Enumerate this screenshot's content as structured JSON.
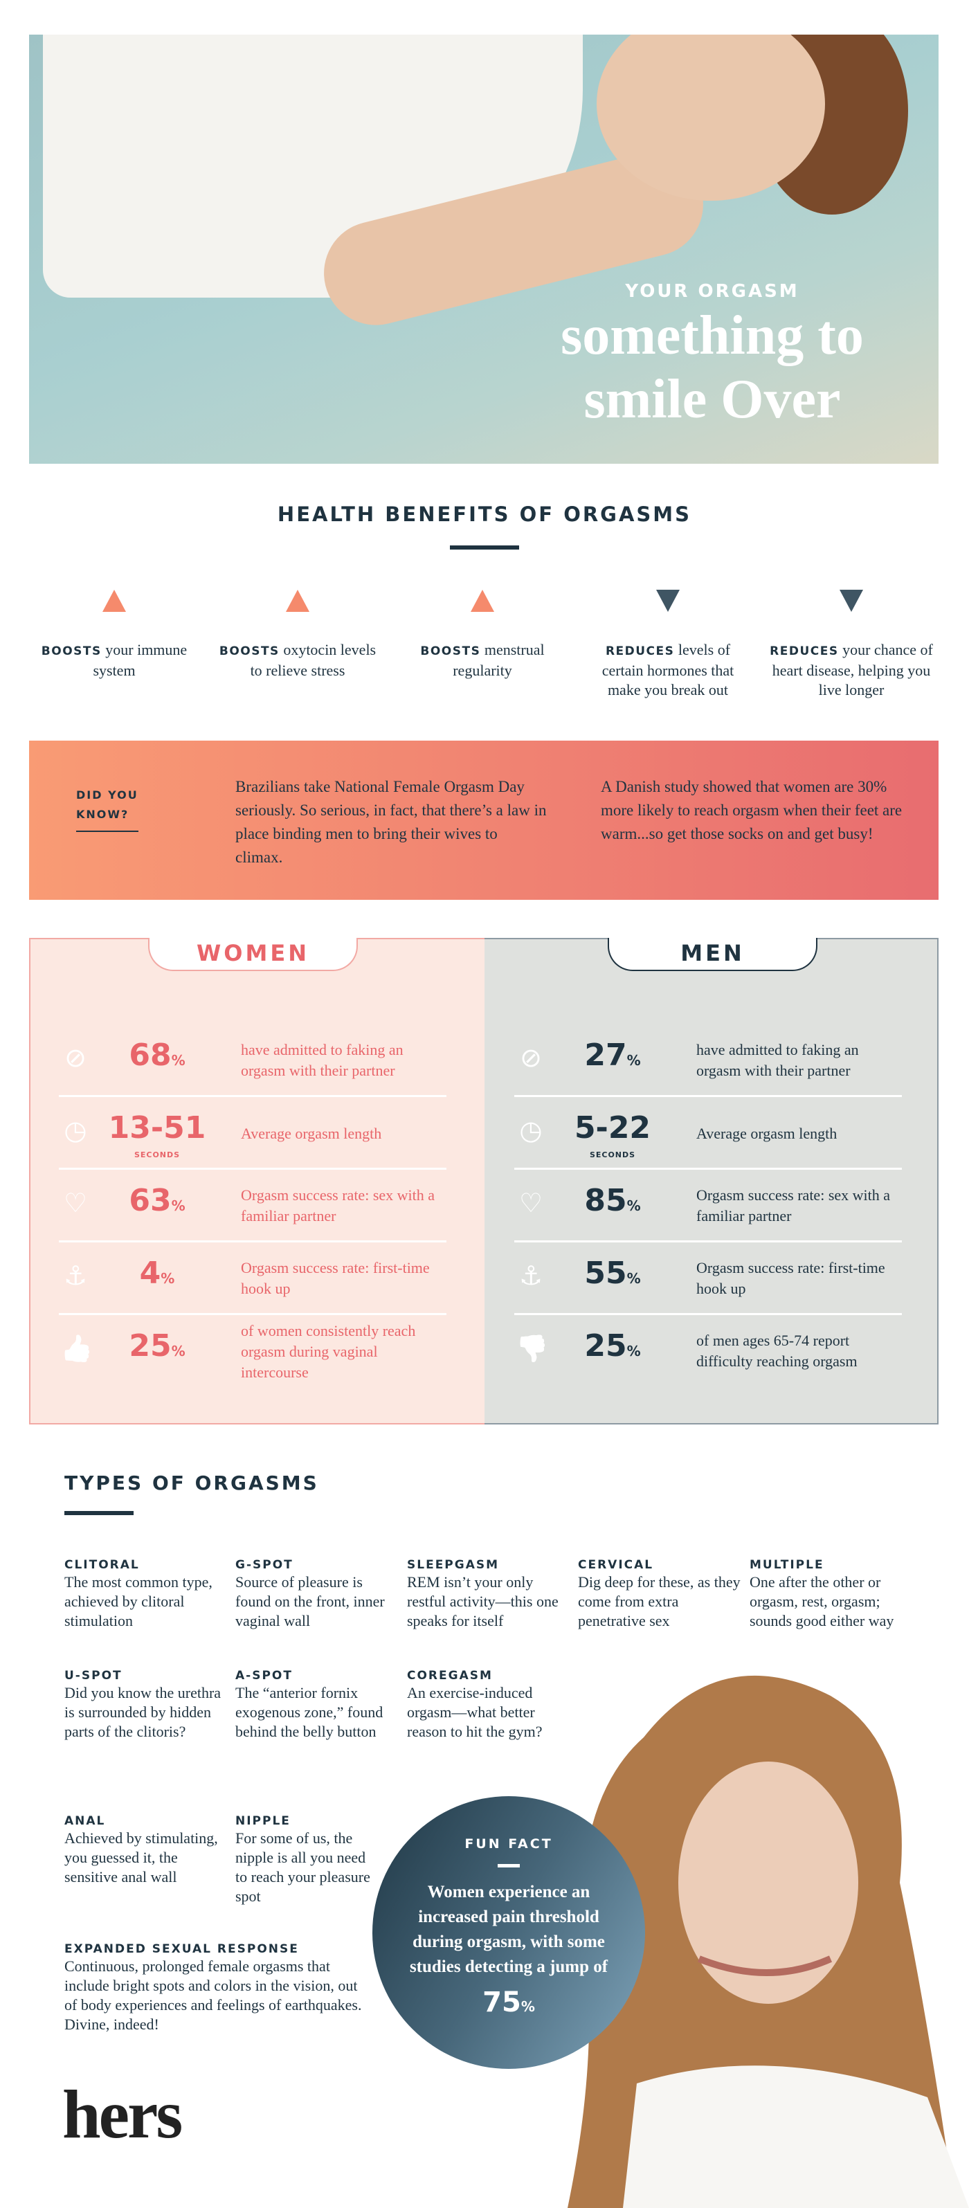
{
  "hero": {
    "kicker": "YOUR ORGASM",
    "title_line1": "something to",
    "title_line2": "smile Over"
  },
  "benefits": {
    "title": "HEALTH BENEFITS OF ORGASMS",
    "items": [
      {
        "direction": "up",
        "bold": "BOOSTS",
        "text": " your immune system"
      },
      {
        "direction": "up",
        "bold": "BOOSTS",
        "text": " oxytocin levels to relieve stress"
      },
      {
        "direction": "up",
        "bold": "BOOSTS",
        "text": " menstrual regularity"
      },
      {
        "direction": "down",
        "bold": "REDUCES",
        "text": " levels of certain hormones that make you break out"
      },
      {
        "direction": "down",
        "bold": "REDUCES",
        "text": " your chance of heart disease, helping you live longer"
      }
    ]
  },
  "did_you_know": {
    "label": "DID YOU KNOW?",
    "facts": [
      "Brazilians take National Female Orgasm Day seriously. So serious, in fact, that there’s a law in place binding men to bring their wives to climax.",
      "A Danish study showed that women are 30% more likely to reach orgasm when their feet are warm...so get those socks on and get busy!"
    ]
  },
  "women": {
    "title": "WOMEN",
    "color": "#e8656a",
    "bg": "#fce8e1",
    "rows": [
      {
        "icon": "no-icon",
        "value": "68",
        "unit": "%",
        "text": "have admitted to faking an orgasm with their partner"
      },
      {
        "icon": "clock-icon",
        "value": "13-51",
        "unit": "",
        "sub": "SECONDS",
        "text": "Average orgasm length"
      },
      {
        "icon": "heart-icon",
        "value": "63",
        "unit": "%",
        "text": "Orgasm success rate: sex with a familiar partner"
      },
      {
        "icon": "anchor-icon",
        "value": "4",
        "unit": "%",
        "text": "Orgasm success rate: first-time hook up"
      },
      {
        "icon": "thumbs-up-icon",
        "value": "25",
        "unit": "%",
        "text": "of women consistently reach orgasm during vaginal intercourse"
      }
    ]
  },
  "men": {
    "title": "MEN",
    "color": "#1f3340",
    "bg": "#dfe1de",
    "rows": [
      {
        "icon": "no-icon",
        "value": "27",
        "unit": "%",
        "text": "have admitted to faking an orgasm with their partner"
      },
      {
        "icon": "clock-icon",
        "value": "5-22",
        "unit": "",
        "sub": "SECONDS",
        "text": "Average orgasm length"
      },
      {
        "icon": "heart-icon",
        "value": "85",
        "unit": "%",
        "text": "Orgasm success rate: sex with a familiar partner"
      },
      {
        "icon": "anchor-icon",
        "value": "55",
        "unit": "%",
        "text": "Orgasm success rate: first-time hook up"
      },
      {
        "icon": "thumbs-down-icon",
        "value": "25",
        "unit": "%",
        "text": "of men ages 65-74 report difficulty reaching orgasm"
      }
    ]
  },
  "types": {
    "title": "TYPES OF ORGASMS",
    "items": [
      {
        "name": "CLITORAL",
        "text": "The most common type, achieved by clitoral stimulation"
      },
      {
        "name": "G-SPOT",
        "text": "Source of pleasure is found on the front, inner vaginal wall"
      },
      {
        "name": "SLEEPGASM",
        "text": "REM isn’t your only restful activity—this one speaks for itself"
      },
      {
        "name": "CERVICAL",
        "text": "Dig deep for these, as they come from extra penetrative sex"
      },
      {
        "name": "MULTIPLE",
        "text": "One after the other or orgasm, rest, orgasm; sounds good either way"
      },
      {
        "name": "U-SPOT",
        "text": "Did you know the urethra is surrounded by hidden parts of the clitoris?"
      },
      {
        "name": "A-SPOT",
        "text": "The “anterior fornix exogenous zone,” found behind the belly button"
      },
      {
        "name": "COREGASM",
        "text": "An exercise-induced orgasm—what better reason to hit the gym?"
      },
      {
        "name": "ANAL",
        "text": "Achieved by stimulating, you guessed it, the sensitive anal wall"
      },
      {
        "name": "NIPPLE",
        "text": "For some of us, the nipple is all you need to reach your pleasure spot"
      },
      {
        "name": "EXPANDED SEXUAL RESPONSE",
        "text": "Continuous, prolonged female orgasms that include bright spots and colors in the vision, out of body experiences and feelings of earthquakes. Divine, indeed!"
      }
    ]
  },
  "fun_fact": {
    "label": "FUN FACT",
    "text": "Women experience an increased pain threshold during orgasm, with some studies detecting a jump of",
    "value": "75",
    "unit": "%"
  },
  "logo": "hers"
}
